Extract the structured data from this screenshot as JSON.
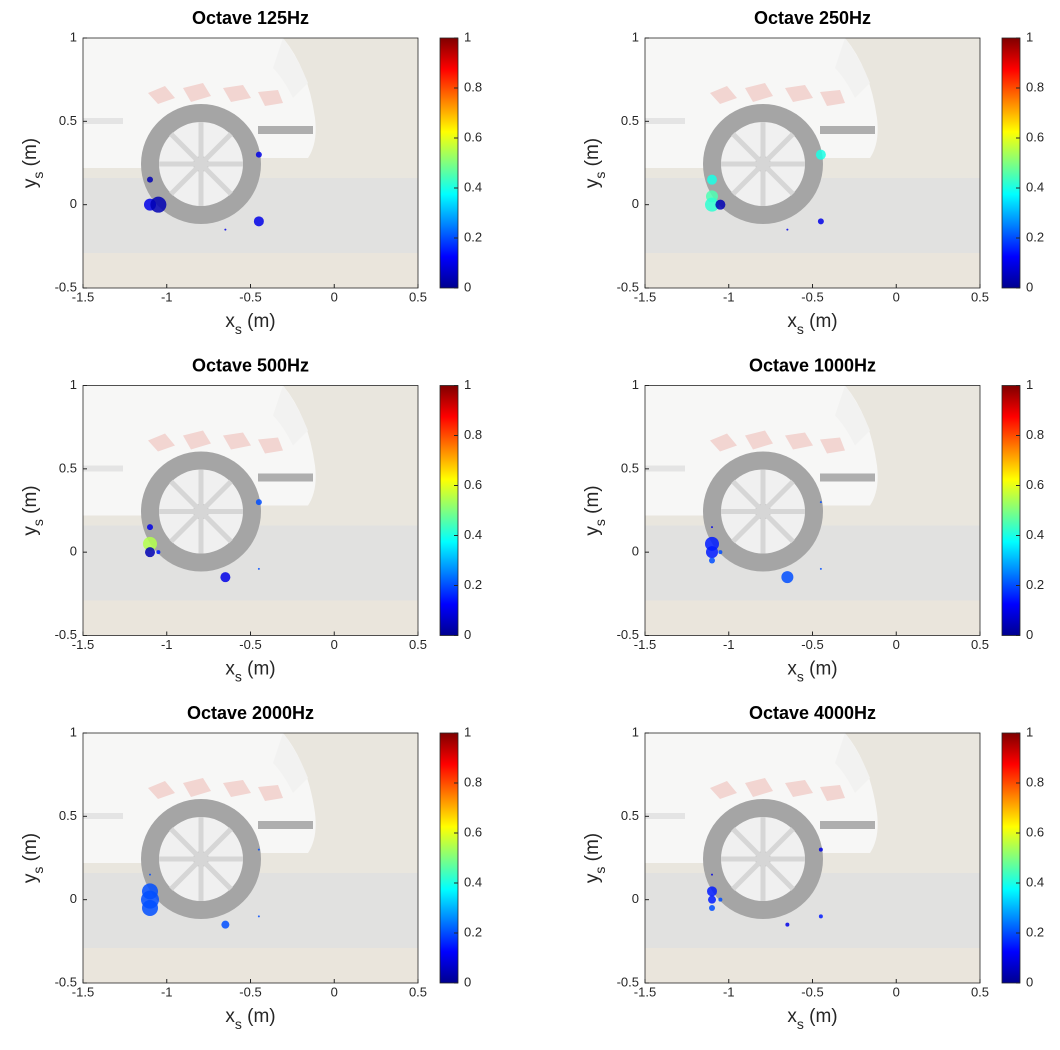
{
  "chart_data": [
    {
      "type": "scatter",
      "title": "Octave 125Hz",
      "xlabel": [
        "x",
        "s",
        " (m)"
      ],
      "ylabel": [
        "y",
        "s",
        " (m)"
      ],
      "x": [
        -1.1,
        -1.1,
        -1.05,
        -0.45,
        -0.45,
        -0.65
      ],
      "y": [
        0.15,
        0,
        0,
        0.3,
        -0.1,
        -0.15
      ],
      "sizes": [
        3,
        6,
        8,
        3,
        5,
        1
      ],
      "c": [
        0.05,
        0.1,
        0.05,
        0.1,
        0.1,
        0.1
      ],
      "xlim": [
        -1.5,
        0.5
      ],
      "ylim": [
        -0.5,
        1
      ],
      "xticks": [
        -1.5,
        -1,
        -0.5,
        0,
        0.5
      ],
      "yticks": [
        -0.5,
        0,
        0.5,
        1
      ],
      "clim": [
        0,
        1
      ],
      "cticks": [
        0,
        0.2,
        0.4,
        0.6,
        0.8,
        1
      ],
      "colormap": "jet"
    },
    {
      "type": "scatter",
      "title": "Octave 250Hz",
      "xlabel": [
        "x",
        "s",
        " (m)"
      ],
      "ylabel": [
        "y",
        "s",
        " (m)"
      ],
      "x": [
        -1.1,
        -1.1,
        -1.1,
        -1.05,
        -0.45,
        -0.45,
        -0.65
      ],
      "y": [
        0.15,
        0.05,
        0,
        0,
        0.3,
        -0.1,
        -0.15
      ],
      "sizes": [
        5,
        6,
        7,
        5,
        5,
        3,
        1
      ],
      "c": [
        0.4,
        0.45,
        0.42,
        0.05,
        0.4,
        0.1,
        0.1
      ],
      "xlim": [
        -1.5,
        0.5
      ],
      "ylim": [
        -0.5,
        1
      ],
      "xticks": [
        -1.5,
        -1,
        -0.5,
        0,
        0.5
      ],
      "yticks": [
        -0.5,
        0,
        0.5,
        1
      ],
      "clim": [
        0,
        1
      ],
      "cticks": [
        0,
        0.2,
        0.4,
        0.6,
        0.8,
        1
      ],
      "colormap": "jet"
    },
    {
      "type": "scatter",
      "title": "Octave 500Hz",
      "xlabel": [
        "x",
        "s",
        " (m)"
      ],
      "ylabel": [
        "y",
        "s",
        " (m)"
      ],
      "x": [
        -1.1,
        -1.1,
        -1.1,
        -1.05,
        -0.45,
        -0.65,
        -0.45
      ],
      "y": [
        0.15,
        0.05,
        0,
        0,
        0.3,
        -0.15,
        -0.1
      ],
      "sizes": [
        3,
        7,
        5,
        2,
        3,
        5,
        1
      ],
      "c": [
        0.1,
        0.55,
        0.05,
        0.15,
        0.2,
        0.1,
        0.2
      ],
      "xlim": [
        -1.5,
        0.5
      ],
      "ylim": [
        -0.5,
        1
      ],
      "xticks": [
        -1.5,
        -1,
        -0.5,
        0,
        0.5
      ],
      "yticks": [
        -0.5,
        0,
        0.5,
        1
      ],
      "clim": [
        0,
        1
      ],
      "cticks": [
        0,
        0.2,
        0.4,
        0.6,
        0.8,
        1
      ],
      "colormap": "jet"
    },
    {
      "type": "scatter",
      "title": "Octave 1000Hz",
      "xlabel": [
        "x",
        "s",
        " (m)"
      ],
      "ylabel": [
        "y",
        "s",
        " (m)"
      ],
      "x": [
        -1.1,
        -1.1,
        -1.1,
        -1.1,
        -1.05,
        -0.65,
        -0.45,
        -0.45
      ],
      "y": [
        0.15,
        0.05,
        0,
        -0.05,
        0,
        -0.15,
        0.3,
        -0.1
      ],
      "sizes": [
        1,
        7,
        6,
        3,
        2,
        6,
        1,
        1
      ],
      "c": [
        0.1,
        0.15,
        0.15,
        0.2,
        0.2,
        0.2,
        0.2,
        0.2
      ],
      "xlim": [
        -1.5,
        0.5
      ],
      "ylim": [
        -0.5,
        1
      ],
      "xticks": [
        -1.5,
        -1,
        -0.5,
        0,
        0.5
      ],
      "yticks": [
        -0.5,
        0,
        0.5,
        1
      ],
      "clim": [
        0,
        1
      ],
      "cticks": [
        0,
        0.2,
        0.4,
        0.6,
        0.8,
        1
      ],
      "colormap": "jet"
    },
    {
      "type": "scatter",
      "title": "Octave 2000Hz",
      "xlabel": [
        "x",
        "s",
        " (m)"
      ],
      "ylabel": [
        "y",
        "s",
        " (m)"
      ],
      "x": [
        -1.1,
        -1.1,
        -1.1,
        -1.1,
        -0.65,
        -0.45,
        -0.45
      ],
      "y": [
        0.15,
        0.05,
        0,
        -0.05,
        -0.15,
        0.3,
        -0.1
      ],
      "sizes": [
        1,
        8,
        9,
        8,
        4,
        1,
        1
      ],
      "c": [
        0.2,
        0.2,
        0.2,
        0.2,
        0.2,
        0.2,
        0.2
      ],
      "xlim": [
        -1.5,
        0.5
      ],
      "ylim": [
        -0.5,
        1
      ],
      "xticks": [
        -1.5,
        -1,
        -0.5,
        0,
        0.5
      ],
      "yticks": [
        -0.5,
        0,
        0.5,
        1
      ],
      "clim": [
        0,
        1
      ],
      "cticks": [
        0,
        0.2,
        0.4,
        0.6,
        0.8,
        1
      ],
      "colormap": "jet"
    },
    {
      "type": "scatter",
      "title": "Octave 4000Hz",
      "xlabel": [
        "x",
        "s",
        " (m)"
      ],
      "ylabel": [
        "y",
        "s",
        " (m)"
      ],
      "x": [
        -1.1,
        -1.1,
        -1.1,
        -1.1,
        -1.05,
        -0.65,
        -0.45,
        -0.45
      ],
      "y": [
        0.15,
        0.05,
        0,
        -0.05,
        0,
        -0.15,
        0.3,
        -0.1
      ],
      "sizes": [
        1,
        5,
        4,
        3,
        2,
        2,
        2,
        2
      ],
      "c": [
        0.1,
        0.15,
        0.15,
        0.2,
        0.2,
        0.1,
        0.1,
        0.15
      ],
      "xlim": [
        -1.5,
        0.5
      ],
      "ylim": [
        -0.5,
        1
      ],
      "xticks": [
        -1.5,
        -1,
        -0.5,
        0,
        0.5
      ],
      "yticks": [
        -0.5,
        0,
        0.5,
        1
      ],
      "clim": [
        0,
        1
      ],
      "cticks": [
        0,
        0.2,
        0.4,
        0.6,
        0.8,
        1
      ],
      "colormap": "jet"
    }
  ]
}
